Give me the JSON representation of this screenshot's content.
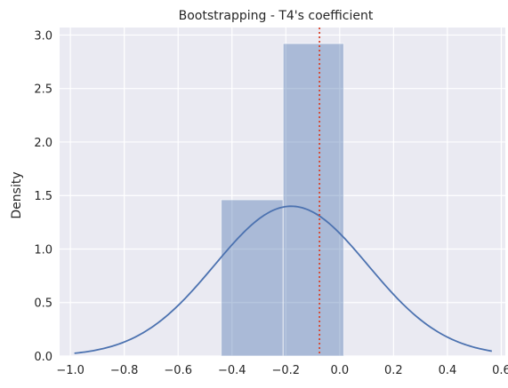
{
  "chart_data": {
    "type": "bar",
    "title": "Bootstrapping - T4's coefficient",
    "xlabel": "",
    "ylabel": "Density",
    "xlim": [
      -1.04,
      0.615
    ],
    "ylim": [
      0.0,
      3.07
    ],
    "xticks": [
      -1.0,
      -0.8,
      -0.6,
      -0.4,
      -0.2,
      0.0,
      0.2,
      0.4,
      0.6
    ],
    "xtick_labels": [
      "−1.0",
      "−0.8",
      "−0.6",
      "−0.4",
      "−0.2",
      "0.0",
      "0.2",
      "0.4",
      "0.6"
    ],
    "yticks": [
      0.0,
      0.5,
      1.0,
      1.5,
      2.0,
      2.5,
      3.0
    ],
    "ytick_labels": [
      "0.0",
      "0.5",
      "1.0",
      "1.5",
      "2.0",
      "2.5",
      "3.0"
    ],
    "grid": true,
    "histogram": {
      "bins": [
        {
          "x0": -0.44,
          "x1": -0.21,
          "density": 1.46
        },
        {
          "x0": -0.21,
          "x1": 0.015,
          "density": 2.92
        }
      ],
      "color": "#4c72b0",
      "opacity": 0.4
    },
    "kde": {
      "peak_x": -0.18,
      "peak_y": 1.4,
      "sigma": 0.285,
      "x_range": [
        -0.985,
        0.565
      ],
      "color": "#4c72b0"
    },
    "reference_line": {
      "x": -0.075,
      "color": "#d9442b",
      "style": "dotted"
    },
    "background_color": "#eaeaf2",
    "grid_color": "#ffffff"
  }
}
